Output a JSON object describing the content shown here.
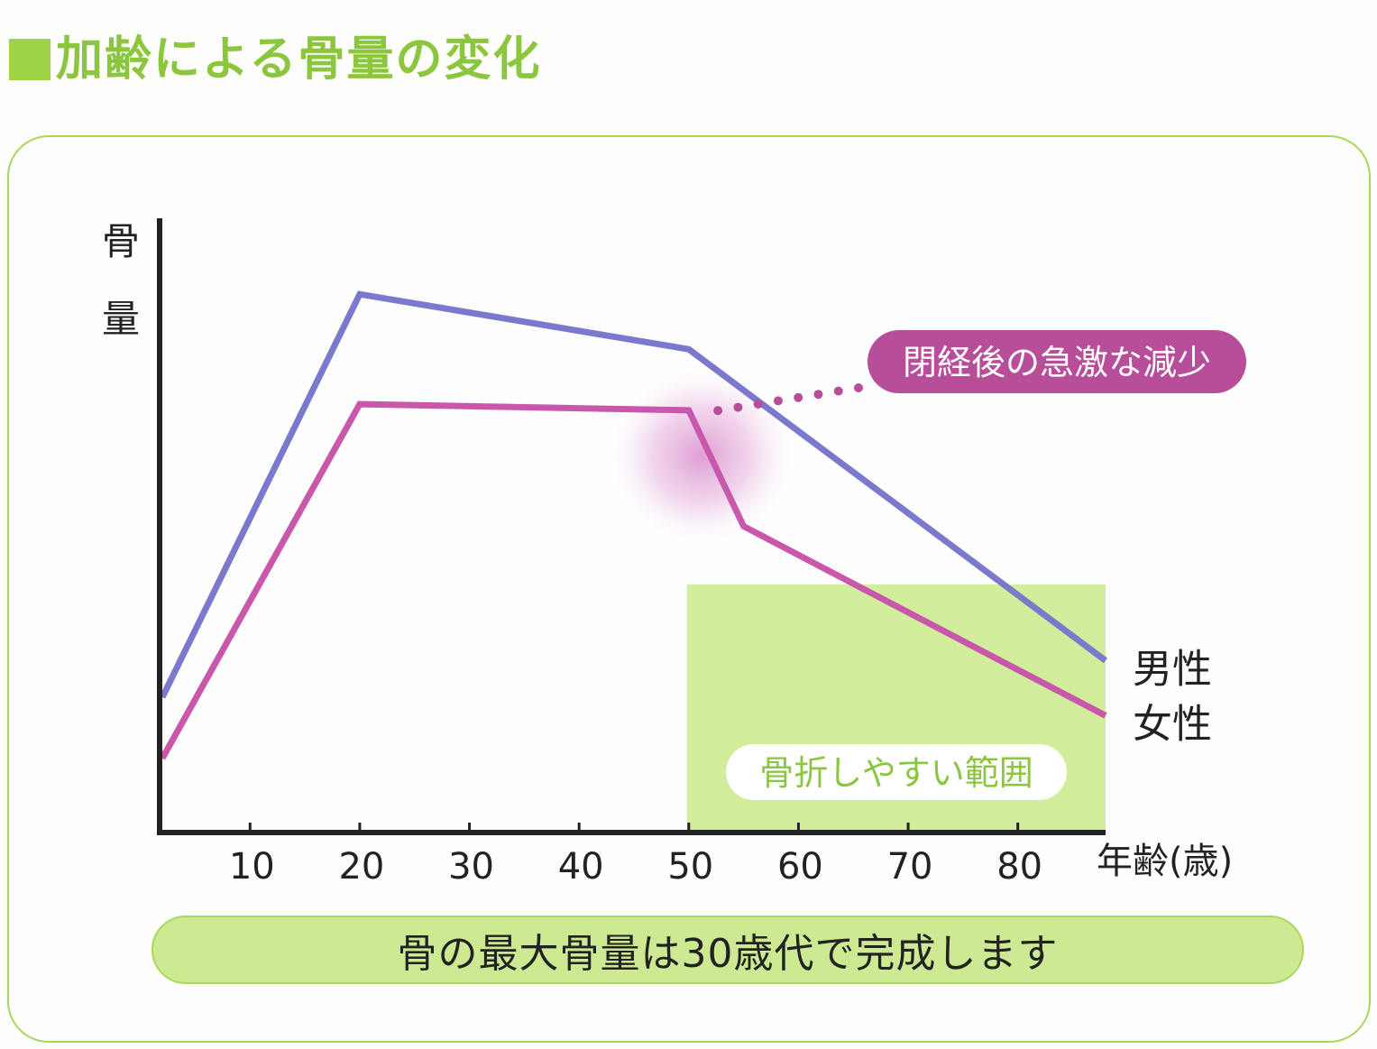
{
  "title": "加齢による骨量の変化",
  "chart_data": {
    "type": "line",
    "title": "加齢による骨量の変化",
    "ylabel": "骨量",
    "xlabel": "年齢(歳)",
    "x_ticks": [
      10,
      20,
      30,
      40,
      50,
      60,
      70,
      80
    ],
    "xlim": [
      2,
      88
    ],
    "ylim": [
      0,
      100
    ],
    "grid": false,
    "y_ticks_shown": false,
    "series": [
      {
        "name": "男性",
        "color": "#7a79cd",
        "points": [
          [
            2,
            22
          ],
          [
            20,
            88
          ],
          [
            50,
            79
          ],
          [
            88,
            28
          ]
        ]
      },
      {
        "name": "女性",
        "color": "#c957ab",
        "points": [
          [
            2,
            12
          ],
          [
            20,
            70
          ],
          [
            50,
            69
          ],
          [
            55,
            50
          ],
          [
            88,
            19
          ]
        ]
      }
    ],
    "shaded_region": {
      "x_from": 50,
      "x_to": 88,
      "label": "骨折しやすい範囲",
      "color": "#d2ee9c"
    },
    "annotation": {
      "text": "閉経後の急激な減少",
      "color": "#b84e9a",
      "points_to": [
        52,
        66
      ]
    }
  },
  "footer": "骨の最大骨量は30歳代で完成します"
}
